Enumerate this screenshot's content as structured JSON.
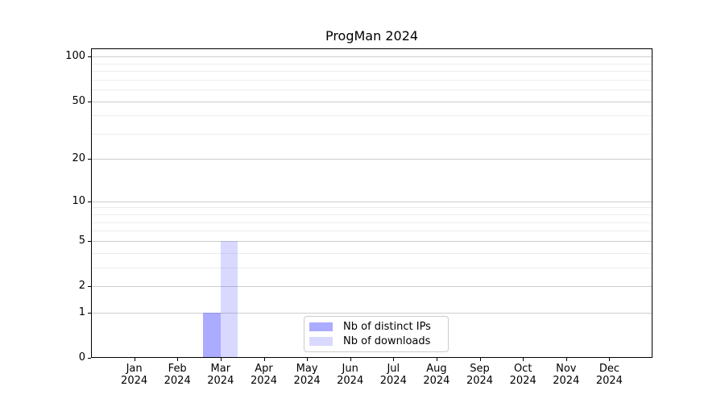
{
  "chart": {
    "title": "ProgMan 2024"
  },
  "chart_data": {
    "type": "bar",
    "title": "ProgMan 2024",
    "xlabel": "",
    "ylabel": "",
    "categories": [
      "Jan 2024",
      "Feb 2024",
      "Mar 2024",
      "Apr 2024",
      "May 2024",
      "Jun 2024",
      "Jul 2024",
      "Aug 2024",
      "Sep 2024",
      "Oct 2024",
      "Nov 2024",
      "Dec 2024"
    ],
    "x_tick_labels": [
      [
        "Jan",
        "2024"
      ],
      [
        "Feb",
        "2024"
      ],
      [
        "Mar",
        "2024"
      ],
      [
        "Apr",
        "2024"
      ],
      [
        "May",
        "2024"
      ],
      [
        "Jun",
        "2024"
      ],
      [
        "Jul",
        "2024"
      ],
      [
        "Aug",
        "2024"
      ],
      [
        "Sep",
        "2024"
      ],
      [
        "Oct",
        "2024"
      ],
      [
        "Nov",
        "2024"
      ],
      [
        "Dec",
        "2024"
      ]
    ],
    "series": [
      {
        "name": "Nb of distinct IPs",
        "color": "rgba(102,102,255,0.55)",
        "values": [
          0,
          0,
          1,
          0,
          0,
          0,
          0,
          0,
          0,
          0,
          0,
          0
        ]
      },
      {
        "name": "Nb of downloads",
        "color": "rgba(102,102,255,0.25)",
        "values": [
          0,
          0,
          5,
          0,
          0,
          0,
          0,
          0,
          0,
          0,
          0,
          0
        ]
      }
    ],
    "y_axis": {
      "scale": "log1p",
      "min": 0,
      "max": 113.5,
      "ticks": [
        0,
        1,
        2,
        5,
        10,
        20,
        50,
        100
      ],
      "minor_gridlines": [
        3,
        4,
        6,
        7,
        8,
        9,
        30,
        40,
        60,
        70,
        80,
        90
      ]
    },
    "grid": true,
    "legend_position": "inside bottom-center",
    "colors": {
      "grid_major": "#cdcdcd",
      "grid_minor": "#ededed",
      "spine": "#000000",
      "text": "#000000",
      "background": "#ffffff"
    }
  }
}
